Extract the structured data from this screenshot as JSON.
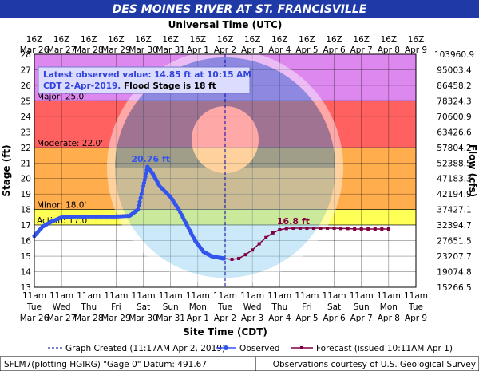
{
  "chart_data": {
    "type": "line",
    "title": "DES MOINES RIVER AT ST. FRANCISVILLE",
    "top_axis_title": "Universal Time (UTC)",
    "xlabel": "Site Time (CDT)",
    "ylabel": "Stage (ft)",
    "y2label": "Flow (cfs)",
    "ylim": [
      13,
      28
    ],
    "yticks": [
      13,
      14,
      15,
      16,
      17,
      18,
      19,
      20,
      21,
      22,
      23,
      24,
      25,
      26,
      27,
      28
    ],
    "flow_ticks": [
      "15266.5",
      "19074.8",
      "23207.7",
      "27651.5",
      "32394.7",
      "37427.1",
      "42194.9",
      "47183.3",
      "52388.5",
      "57804.2",
      "63426.6",
      "70600.9",
      "78324.3",
      "86458.2",
      "95003.4",
      "103960.9"
    ],
    "top_ticks": [
      {
        "hour": "16Z",
        "date": "Mar 26"
      },
      {
        "hour": "16Z",
        "date": "Mar 27"
      },
      {
        "hour": "16Z",
        "date": "Mar 28"
      },
      {
        "hour": "16Z",
        "date": "Mar 29"
      },
      {
        "hour": "16Z",
        "date": "Mar 30"
      },
      {
        "hour": "16Z",
        "date": "Mar 31"
      },
      {
        "hour": "16Z",
        "date": "Apr 1"
      },
      {
        "hour": "16Z",
        "date": "Apr 2"
      },
      {
        "hour": "16Z",
        "date": "Apr 3"
      },
      {
        "hour": "16Z",
        "date": "Apr 4"
      },
      {
        "hour": "16Z",
        "date": "Apr 5"
      },
      {
        "hour": "16Z",
        "date": "Apr 6"
      },
      {
        "hour": "16Z",
        "date": "Apr 7"
      },
      {
        "hour": "16Z",
        "date": "Apr 8"
      },
      {
        "hour": "16Z",
        "date": "Apr 9"
      }
    ],
    "bottom_ticks": [
      {
        "time": "11am",
        "day": "Tue",
        "date": "Mar 26"
      },
      {
        "time": "11am",
        "day": "Wed",
        "date": "Mar 27"
      },
      {
        "time": "11am",
        "day": "Thu",
        "date": "Mar 28"
      },
      {
        "time": "11am",
        "day": "Fri",
        "date": "Mar 29"
      },
      {
        "time": "11am",
        "day": "Sat",
        "date": "Mar 30"
      },
      {
        "time": "11am",
        "day": "Sun",
        "date": "Mar 31"
      },
      {
        "time": "11am",
        "day": "Mon",
        "date": "Apr 1"
      },
      {
        "time": "11am",
        "day": "Tue",
        "date": "Apr 2"
      },
      {
        "time": "11am",
        "day": "Wed",
        "date": "Apr 3"
      },
      {
        "time": "11am",
        "day": "Thu",
        "date": "Apr 4"
      },
      {
        "time": "11am",
        "day": "Fri",
        "date": "Apr 5"
      },
      {
        "time": "11am",
        "day": "Sat",
        "date": "Apr 6"
      },
      {
        "time": "11am",
        "day": "Sun",
        "date": "Apr 7"
      },
      {
        "time": "11am",
        "day": "Mon",
        "date": "Apr 8"
      },
      {
        "time": "11am",
        "day": "Tue",
        "date": "Apr 9"
      }
    ],
    "bands": [
      {
        "label": "Major: 25.0'",
        "from": 25,
        "to": 28,
        "color": "#dd88ee"
      },
      {
        "label": "",
        "from": 22,
        "to": 25,
        "color": "#ff6060"
      },
      {
        "label": "Moderate: 22.0'",
        "from": 18,
        "to": 22,
        "color": "#ffad4d"
      },
      {
        "label": "Minor: 18.0'",
        "from": 17,
        "to": 18,
        "color": "#ffff55"
      },
      {
        "label": "Action: 17.0'",
        "from": 13,
        "to": 17,
        "color": "#ffffff"
      }
    ],
    "info_box": {
      "line1": "Latest observed value: 14.85 ft at 10:15 AM",
      "line2a": "CDT 2-Apr-2019.",
      "line2b": " Flood Stage is 18 ft"
    },
    "created_day": 7.0,
    "crest_label": "20.76 ft",
    "forecast_label": "16.8 ft",
    "observed": {
      "name": "Observed",
      "color": "#3355ee",
      "points": [
        [
          0.0,
          16.3
        ],
        [
          0.3,
          16.9
        ],
        [
          0.6,
          17.2
        ],
        [
          1.0,
          17.5
        ],
        [
          1.5,
          17.55
        ],
        [
          2.0,
          17.55
        ],
        [
          2.5,
          17.55
        ],
        [
          3.0,
          17.55
        ],
        [
          3.5,
          17.6
        ],
        [
          3.8,
          18.0
        ],
        [
          4.0,
          19.5
        ],
        [
          4.15,
          20.76
        ],
        [
          4.35,
          20.3
        ],
        [
          4.6,
          19.5
        ],
        [
          5.0,
          18.8
        ],
        [
          5.3,
          18.0
        ],
        [
          5.6,
          17.0
        ],
        [
          5.9,
          16.0
        ],
        [
          6.2,
          15.3
        ],
        [
          6.5,
          15.0
        ],
        [
          6.8,
          14.9
        ],
        [
          6.95,
          14.85
        ]
      ]
    },
    "forecast": {
      "name": "Forecast (issued 10:11AM Apr 1)",
      "color": "#800040",
      "points": [
        [
          6.95,
          14.85
        ],
        [
          7.25,
          14.8
        ],
        [
          7.5,
          14.85
        ],
        [
          7.75,
          15.1
        ],
        [
          8.0,
          15.4
        ],
        [
          8.25,
          15.8
        ],
        [
          8.5,
          16.2
        ],
        [
          8.75,
          16.5
        ],
        [
          9.0,
          16.7
        ],
        [
          9.25,
          16.78
        ],
        [
          9.5,
          16.8
        ],
        [
          9.75,
          16.8
        ],
        [
          10.0,
          16.8
        ],
        [
          10.25,
          16.8
        ],
        [
          10.5,
          16.8
        ],
        [
          10.75,
          16.8
        ],
        [
          11.0,
          16.8
        ],
        [
          11.25,
          16.78
        ],
        [
          11.5,
          16.78
        ],
        [
          11.75,
          16.75
        ],
        [
          12.0,
          16.75
        ],
        [
          12.25,
          16.75
        ],
        [
          12.5,
          16.75
        ],
        [
          12.75,
          16.75
        ],
        [
          13.0,
          16.75
        ]
      ]
    },
    "legend": {
      "created": "Graph Created (11:17AM Apr 2, 2019)",
      "observed": "Observed",
      "forecast": "Forecast (issued 10:11AM Apr 1)"
    },
    "footer_left": "SFLM7(plotting HGIRG) \"Gage 0\" Datum: 491.67'",
    "footer_right": "Observations courtesy of U.S. Geological Survey"
  }
}
